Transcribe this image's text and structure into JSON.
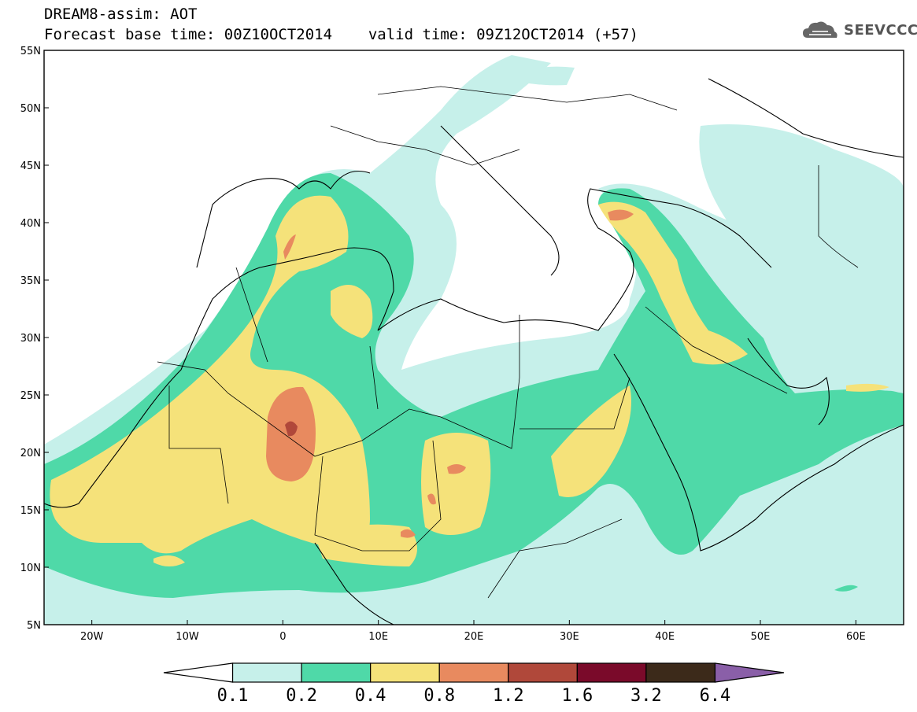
{
  "title": {
    "line1": "DREAM8-assim: AOT",
    "base_time": "Forecast base time: 00Z10OCT2014",
    "valid_time": "valid time: 09Z12OCT2014 (+57)"
  },
  "logo": {
    "text": "SEEVCCC",
    "icon": "cloud-logo-icon"
  },
  "map": {
    "lon_range": [
      -25,
      65
    ],
    "lat_range": [
      5,
      55
    ],
    "lat_ticks": [
      {
        "v": 55,
        "label": "55N"
      },
      {
        "v": 50,
        "label": "50N"
      },
      {
        "v": 45,
        "label": "45N"
      },
      {
        "v": 40,
        "label": "40N"
      },
      {
        "v": 35,
        "label": "35N"
      },
      {
        "v": 30,
        "label": "30N"
      },
      {
        "v": 25,
        "label": "25N"
      },
      {
        "v": 20,
        "label": "20N"
      },
      {
        "v": 15,
        "label": "15N"
      },
      {
        "v": 10,
        "label": "10N"
      },
      {
        "v": 5,
        "label": "5N"
      }
    ],
    "lon_ticks": [
      {
        "v": -20,
        "label": "20W"
      },
      {
        "v": -10,
        "label": "10W"
      },
      {
        "v": 0,
        "label": "0"
      },
      {
        "v": 10,
        "label": "10E"
      },
      {
        "v": 20,
        "label": "20E"
      },
      {
        "v": 30,
        "label": "30E"
      },
      {
        "v": 40,
        "label": "40E"
      },
      {
        "v": 50,
        "label": "50E"
      },
      {
        "v": 60,
        "label": "60E"
      }
    ]
  },
  "colorbar": {
    "labels": [
      "0.1",
      "0.2",
      "0.4",
      "0.8",
      "1.2",
      "1.6",
      "3.2",
      "6.4"
    ],
    "colors": [
      "#ffffff",
      "#c6f0ea",
      "#4fd9a8",
      "#f5e27a",
      "#e88a5f",
      "#b0483a",
      "#7a0a2a",
      "#3c2a1a",
      "#8a5fa8"
    ]
  },
  "palette": {
    "lvl1": "#c6f0ea",
    "lvl2": "#4fd9a8",
    "lvl3": "#f5e27a",
    "lvl4": "#e88a5f",
    "lvl5": "#b0483a",
    "lvl6": "#7a0a2a"
  }
}
